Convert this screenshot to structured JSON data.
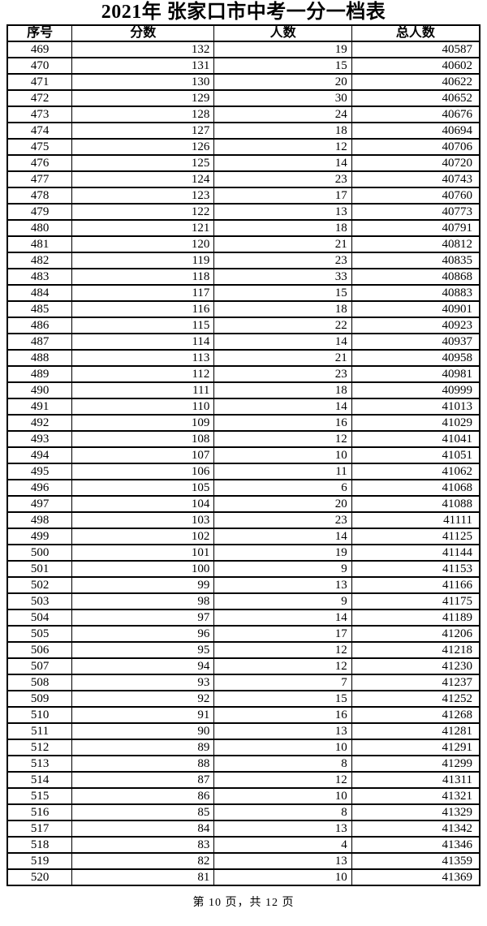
{
  "title": "2021年 张家口市中考一分一档表",
  "table": {
    "headers": [
      "序号",
      "分数",
      "人数",
      "总人数"
    ],
    "rows": [
      [
        469,
        132,
        19,
        40587
      ],
      [
        470,
        131,
        15,
        40602
      ],
      [
        471,
        130,
        20,
        40622
      ],
      [
        472,
        129,
        30,
        40652
      ],
      [
        473,
        128,
        24,
        40676
      ],
      [
        474,
        127,
        18,
        40694
      ],
      [
        475,
        126,
        12,
        40706
      ],
      [
        476,
        125,
        14,
        40720
      ],
      [
        477,
        124,
        23,
        40743
      ],
      [
        478,
        123,
        17,
        40760
      ],
      [
        479,
        122,
        13,
        40773
      ],
      [
        480,
        121,
        18,
        40791
      ],
      [
        481,
        120,
        21,
        40812
      ],
      [
        482,
        119,
        23,
        40835
      ],
      [
        483,
        118,
        33,
        40868
      ],
      [
        484,
        117,
        15,
        40883
      ],
      [
        485,
        116,
        18,
        40901
      ],
      [
        486,
        115,
        22,
        40923
      ],
      [
        487,
        114,
        14,
        40937
      ],
      [
        488,
        113,
        21,
        40958
      ],
      [
        489,
        112,
        23,
        40981
      ],
      [
        490,
        111,
        18,
        40999
      ],
      [
        491,
        110,
        14,
        41013
      ],
      [
        492,
        109,
        16,
        41029
      ],
      [
        493,
        108,
        12,
        41041
      ],
      [
        494,
        107,
        10,
        41051
      ],
      [
        495,
        106,
        11,
        41062
      ],
      [
        496,
        105,
        6,
        41068
      ],
      [
        497,
        104,
        20,
        41088
      ],
      [
        498,
        103,
        23,
        41111
      ],
      [
        499,
        102,
        14,
        41125
      ],
      [
        500,
        101,
        19,
        41144
      ],
      [
        501,
        100,
        9,
        41153
      ],
      [
        502,
        99,
        13,
        41166
      ],
      [
        503,
        98,
        9,
        41175
      ],
      [
        504,
        97,
        14,
        41189
      ],
      [
        505,
        96,
        17,
        41206
      ],
      [
        506,
        95,
        12,
        41218
      ],
      [
        507,
        94,
        12,
        41230
      ],
      [
        508,
        93,
        7,
        41237
      ],
      [
        509,
        92,
        15,
        41252
      ],
      [
        510,
        91,
        16,
        41268
      ],
      [
        511,
        90,
        13,
        41281
      ],
      [
        512,
        89,
        10,
        41291
      ],
      [
        513,
        88,
        8,
        41299
      ],
      [
        514,
        87,
        12,
        41311
      ],
      [
        515,
        86,
        10,
        41321
      ],
      [
        516,
        85,
        8,
        41329
      ],
      [
        517,
        84,
        13,
        41342
      ],
      [
        518,
        83,
        4,
        41346
      ],
      [
        519,
        82,
        13,
        41359
      ],
      [
        520,
        81,
        10,
        41369
      ]
    ]
  },
  "footer": "第 10 页，共 12 页"
}
